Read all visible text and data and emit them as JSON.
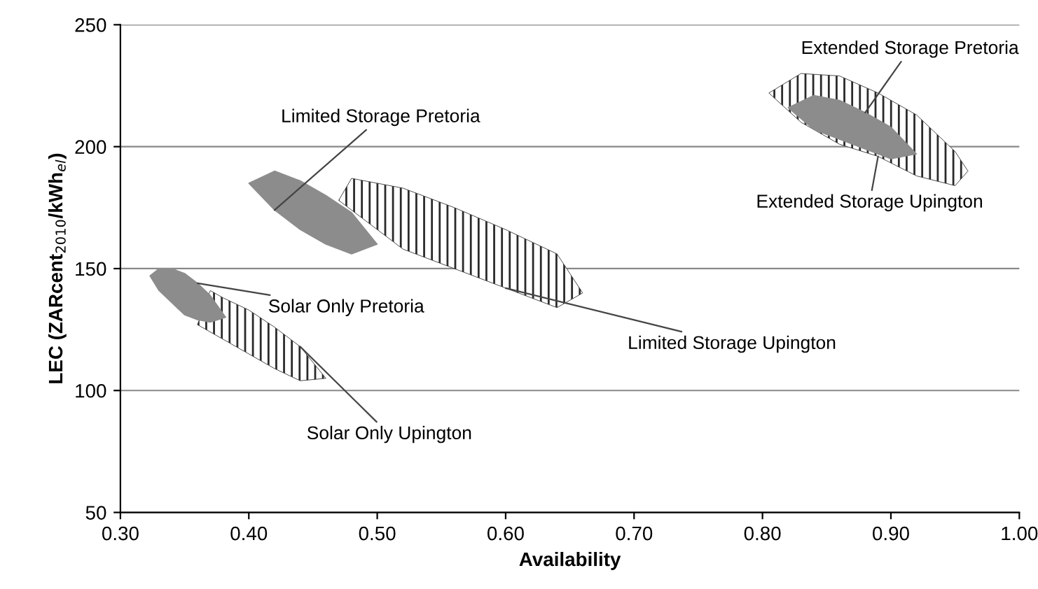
{
  "chart_data": {
    "type": "area",
    "xlabel": "Availability",
    "ylabel": "LEC (ZARcent$_{2010}$/kWh$_{el}$)",
    "xlim": [
      0.3,
      1.0
    ],
    "xticks": [
      {
        "value": 0.3,
        "label": "0.30"
      },
      {
        "value": 0.4,
        "label": "0.40"
      },
      {
        "value": 0.5,
        "label": "0.50"
      },
      {
        "value": 0.6,
        "label": "0.60"
      },
      {
        "value": 0.7,
        "label": "0.70"
      },
      {
        "value": 0.8,
        "label": "0.80"
      },
      {
        "value": 0.9,
        "label": "0.90"
      },
      {
        "value": 1.0,
        "label": "1.00"
      }
    ],
    "ylim": [
      50,
      250
    ],
    "yticks": [
      50,
      100,
      150,
      200,
      250
    ],
    "grid": "y",
    "series": [
      {
        "color": "#8c8c8c",
        "x": [
          0.323,
          0.33,
          0.34,
          0.35,
          0.36,
          0.37,
          0.382,
          0.37,
          0.36,
          0.35,
          0.34,
          0.33
        ],
        "values": [
          147,
          150,
          150,
          148,
          144,
          139,
          130,
          128,
          129,
          131,
          136,
          141
        ]
      },
      {
        "color": "#8c8c8c",
        "x": [
          0.4,
          0.42,
          0.44,
          0.46,
          0.48,
          0.5,
          0.48,
          0.46,
          0.44,
          0.42
        ],
        "values": [
          185,
          190,
          186,
          180,
          173,
          160,
          156,
          160,
          166,
          174
        ]
      },
      {
        "color": "#8c8c8c",
        "x": [
          0.82,
          0.84,
          0.86,
          0.88,
          0.9,
          0.92,
          0.9,
          0.88,
          0.86,
          0.84
        ],
        "values": [
          216,
          221,
          219,
          214,
          208,
          197,
          195,
          199,
          203,
          207
        ]
      },
      {
        "color": "#2a2a2a",
        "x": [
          0.37,
          0.38,
          0.4,
          0.42,
          0.44,
          0.46,
          0.44,
          0.42,
          0.4,
          0.38,
          0.36
        ],
        "values": [
          141,
          138,
          133,
          126,
          118,
          105,
          104,
          109,
          115,
          121,
          127
        ]
      },
      {
        "color": "#2a2a2a",
        "x": [
          0.47,
          0.48,
          0.52,
          0.56,
          0.6,
          0.64,
          0.66,
          0.64,
          0.6,
          0.56,
          0.52
        ],
        "values": [
          178,
          187,
          183,
          175,
          166,
          156,
          140,
          134,
          142,
          150,
          158
        ]
      },
      {
        "color": "#2a2a2a",
        "x": [
          0.805,
          0.83,
          0.86,
          0.89,
          0.92,
          0.95,
          0.96,
          0.95,
          0.92,
          0.89,
          0.86,
          0.83
        ],
        "values": [
          222,
          230,
          229,
          222,
          213,
          198,
          190,
          184,
          188,
          196,
          201,
          210
        ]
      }
    ],
    "annotations": [
      {
        "text": "Solar Only Pretoria",
        "x": 0.36,
        "y": 144
      },
      {
        "text": "Solar Only Upington",
        "x": 0.44,
        "y": 118
      },
      {
        "text": "Limited Storage Pretoria",
        "x": 0.42,
        "y": 174
      },
      {
        "text": "Limited Storage Upington",
        "x": 0.6,
        "y": 142
      },
      {
        "text": "Extended Storage Pretoria",
        "x": 0.88,
        "y": 214
      },
      {
        "text": "Extended Storage Upington",
        "x": 0.89,
        "y": 196
      }
    ]
  }
}
